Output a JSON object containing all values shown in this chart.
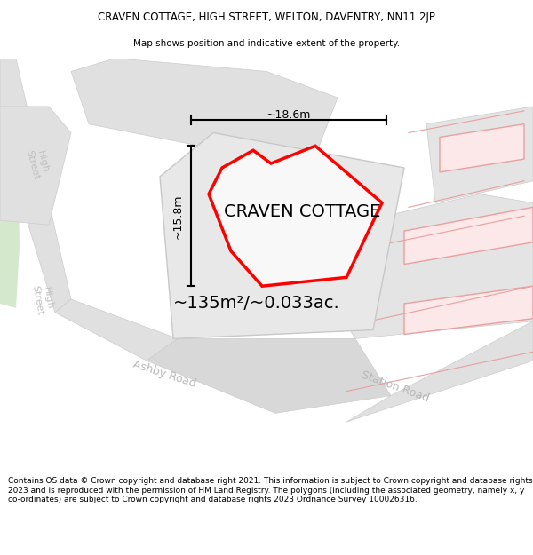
{
  "title": "CRAVEN COTTAGE, HIGH STREET, WELTON, DAVENTRY, NN11 2JP",
  "subtitle": "Map shows position and indicative extent of the property.",
  "footer": "Contains OS data © Crown copyright and database right 2021. This information is subject to Crown copyright and database rights 2023 and is reproduced with the permission of HM Land Registry. The polygons (including the associated geometry, namely x, y co-ordinates) are subject to Crown copyright and database rights 2023 Ordnance Survey 100026316.",
  "area_label": "~135m²/~0.033ac.",
  "width_label": "~18.6m",
  "height_label": "~15.8m",
  "property_label": "CRAVEN COTTAGE",
  "bg_color": "#ffffff",
  "map_bg": "#ffffff",
  "road_fill": "#e0e0e0",
  "road_edge": "#cccccc",
  "center_block_fill": "#e8e8e8",
  "center_block_edge": "#c8c8c8",
  "pink_fill": "#fce8e8",
  "pink_edge": "#e8a0a0",
  "green_fill": "#d4e8cc",
  "property_fill": "#f0f0f0",
  "property_edge": "#ff0000",
  "title_fontsize": 8.5,
  "subtitle_fontsize": 7.5,
  "footer_fontsize": 6.5,
  "area_fontsize": 14,
  "dim_fontsize": 9,
  "road_label_fontsize": 9,
  "prop_label_fontsize": 14
}
